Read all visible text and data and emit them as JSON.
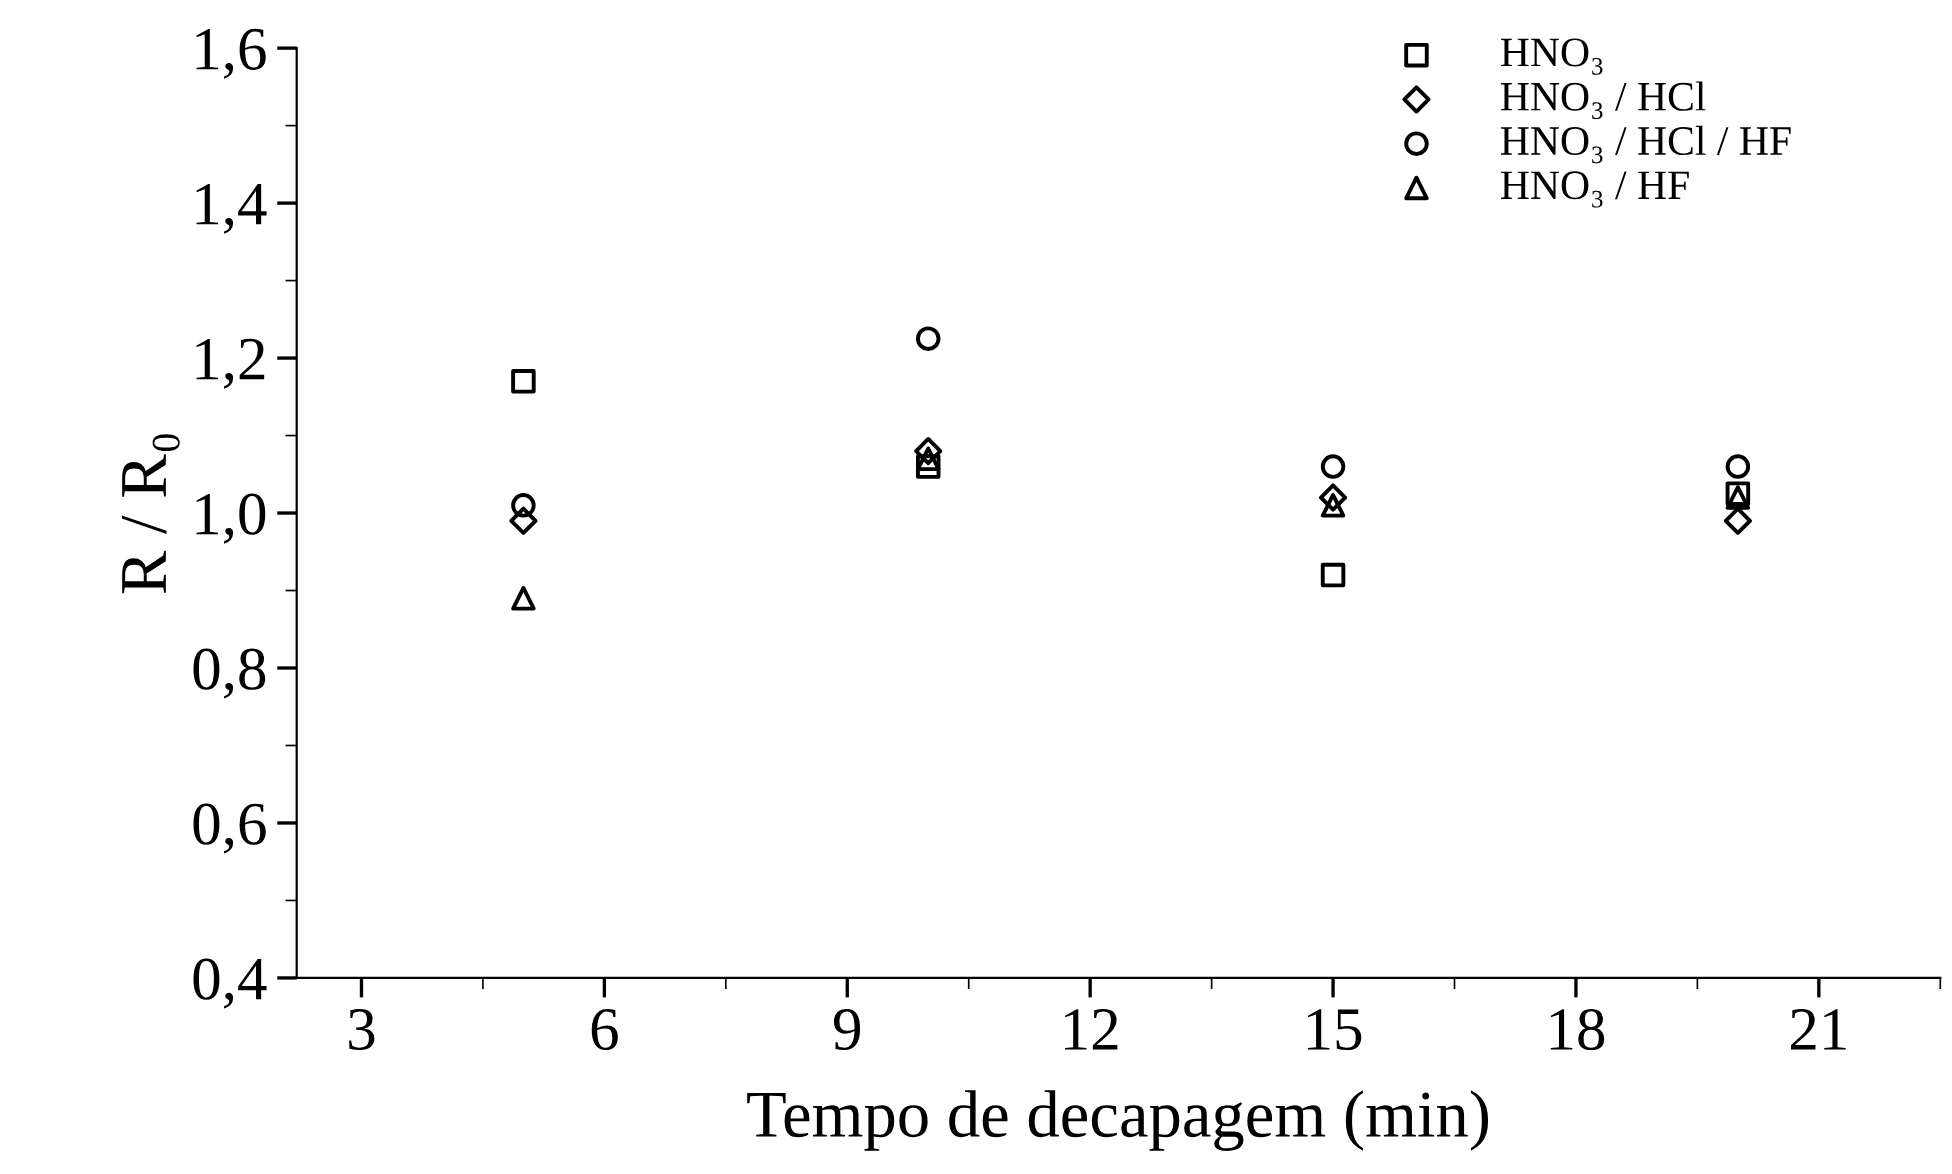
{
  "chart_data": {
    "type": "scatter",
    "xlabel": "Tempo de decapagem (min)",
    "ylabel": "R / R₀",
    "xlim": [
      2.2,
      22.5
    ],
    "xticks": [
      3,
      6,
      9,
      12,
      15,
      18,
      21
    ],
    "ylim": [
      0.4,
      1.6
    ],
    "yticks": [
      {
        "value": 0.4,
        "label": "0,4"
      },
      {
        "value": 0.6,
        "label": "0,6"
      },
      {
        "value": 0.8,
        "label": "0,8"
      },
      {
        "value": 1.0,
        "label": "1,0"
      },
      {
        "value": 1.2,
        "label": "1,2"
      },
      {
        "value": 1.4,
        "label": "1,4"
      },
      {
        "value": 1.6,
        "label": "1,6"
      }
    ],
    "grid": false,
    "legend": "top right",
    "x": [
      5,
      10,
      15,
      20
    ],
    "series": [
      {
        "name": "HNO₃",
        "color": "#000000",
        "marker": "square",
        "values": [
          1.17,
          1.06,
          0.92,
          1.025
        ]
      },
      {
        "name": "HNO₃ / HCl",
        "color": "#000000",
        "marker": "diamond",
        "values": [
          0.99,
          1.08,
          1.02,
          0.99
        ]
      },
      {
        "name": "HNO₃ / HCl / HF",
        "color": "#000000",
        "marker": "circle",
        "values": [
          1.01,
          1.225,
          1.06,
          1.06
        ]
      },
      {
        "name": "HNO₃ / HF",
        "color": "#000000",
        "marker": "triangle",
        "values": [
          0.89,
          1.07,
          1.01,
          1.02
        ]
      }
    ]
  }
}
